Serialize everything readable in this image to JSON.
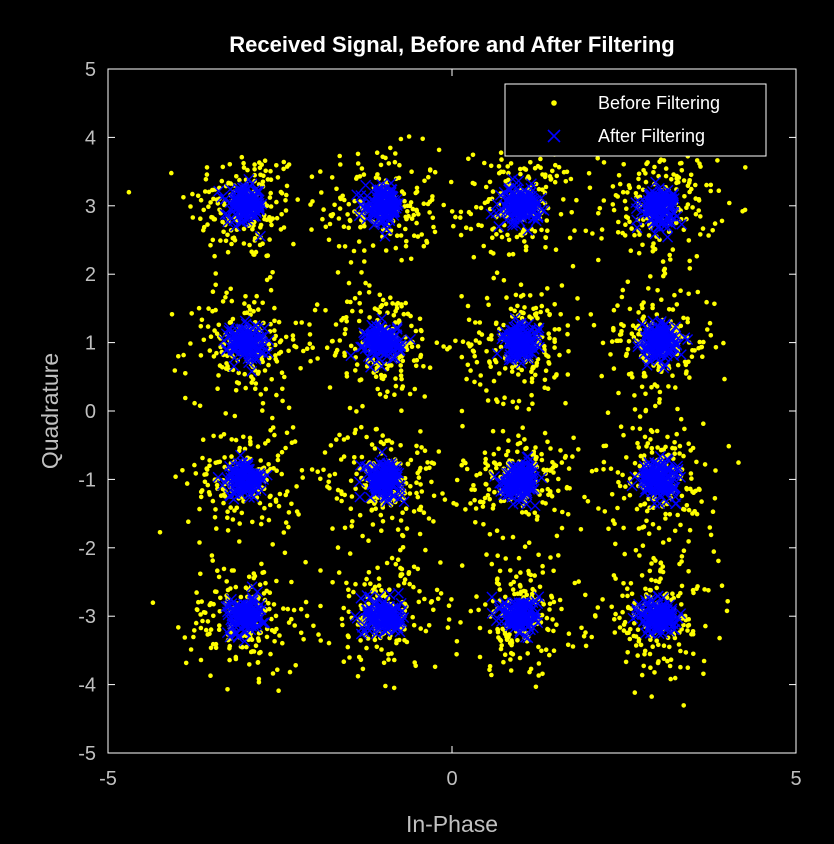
{
  "chart_data": {
    "type": "scatter",
    "title": "Received Signal, Before and After Filtering",
    "xlabel": "In-Phase",
    "ylabel": "Quadrature",
    "xlim": [
      -5,
      5
    ],
    "ylim": [
      -5,
      5
    ],
    "xticks": [
      "-5",
      "0",
      "5"
    ],
    "yticks": [
      "5",
      "4",
      "3",
      "2",
      "1",
      "0",
      "-1",
      "-2",
      "-3",
      "-4",
      "-5"
    ],
    "grid": false,
    "legend_position": "top-right",
    "constellation_points": [
      [
        -3,
        3
      ],
      [
        -1,
        3
      ],
      [
        1,
        3
      ],
      [
        3,
        3
      ],
      [
        -3,
        1
      ],
      [
        -1,
        1
      ],
      [
        1,
        1
      ],
      [
        3,
        1
      ],
      [
        -3,
        -1
      ],
      [
        -1,
        -1
      ],
      [
        1,
        -1
      ],
      [
        3,
        -1
      ],
      [
        -3,
        -3
      ],
      [
        -1,
        -3
      ],
      [
        1,
        -3
      ],
      [
        3,
        -3
      ]
    ],
    "series": [
      {
        "name": "Before Filtering",
        "marker": "dot",
        "color": "#ffff00",
        "spread_std": 0.42,
        "points_per_cluster": 180
      },
      {
        "name": "After Filtering",
        "marker": "x",
        "color": "#0000ff",
        "spread_std": 0.13,
        "points_per_cluster": 140
      }
    ]
  }
}
